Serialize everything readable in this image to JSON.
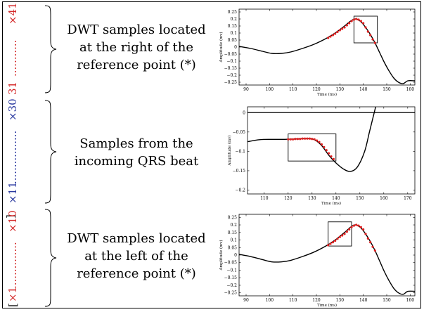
{
  "rows": [
    {
      "index_labels": [
        {
          "text": "31",
          "color": "#d42a2a",
          "bold": false
        },
        {
          "text": "×41",
          "color": "#d42a2a",
          "bold": false
        }
      ],
      "dots_color": "#d42a2a",
      "description": [
        "DWT samples located",
        "at the right of the",
        "reference point (*)"
      ]
    },
    {
      "index_labels": [
        {
          "text": "×11",
          "color": "#2b3aa0",
          "bold": false
        },
        {
          "text": "×30",
          "color": "#2b3aa0",
          "bold": false
        }
      ],
      "dots_color": "#2b3aa0",
      "description": [
        "Samples from the",
        "incoming QRS beat"
      ]
    },
    {
      "index_labels": [
        {
          "text": "×1",
          "color": "#d42a2a",
          "bold": false
        },
        {
          "text": "×10",
          "color": "#d42a2a",
          "bold": false
        }
      ],
      "dots_color": "#d42a2a",
      "description": [
        "DWT samples located",
        "at the left of the",
        "reference point (*)"
      ]
    }
  ],
  "bracket_text": "[",
  "bracket_close": "]",
  "chart_data": [
    {
      "type": "line",
      "xlabel": "Time (ms)",
      "ylabel": "Amplitude (mv)",
      "xlim": [
        87,
        162
      ],
      "ylim": [
        -0.27,
        0.27
      ],
      "xticks": [
        90,
        100,
        110,
        120,
        130,
        140,
        150,
        160
      ],
      "yticks": [
        0.25,
        0.2,
        0.15,
        0.1,
        0.05,
        0,
        -0.05,
        -0.1,
        -0.15,
        -0.2,
        -0.25
      ],
      "ytick_labels": [
        "0.25",
        "0.2",
        "0.15",
        "0.1",
        "0.05",
        "0",
        "−0.05",
        "−0.1",
        "−0.15",
        "−0.2",
        "−0.25"
      ],
      "curve": [
        [
          87,
          0.005
        ],
        [
          92,
          -0.01
        ],
        [
          97,
          -0.03
        ],
        [
          101,
          -0.045
        ],
        [
          105,
          -0.045
        ],
        [
          109,
          -0.035
        ],
        [
          114,
          -0.01
        ],
        [
          119,
          0.02
        ],
        [
          124,
          0.06
        ],
        [
          128,
          0.1
        ],
        [
          132,
          0.15
        ],
        [
          135,
          0.19
        ],
        [
          137,
          0.2
        ],
        [
          139,
          0.18
        ],
        [
          141,
          0.14
        ],
        [
          143,
          0.09
        ],
        [
          145,
          0.03
        ],
        [
          147,
          -0.04
        ],
        [
          149,
          -0.11
        ],
        [
          151,
          -0.17
        ],
        [
          153,
          -0.22
        ],
        [
          155,
          -0.25
        ],
        [
          157,
          -0.26
        ],
        [
          159,
          -0.24
        ],
        [
          162,
          -0.24
        ]
      ],
      "points_x": [
        125,
        126,
        127,
        128,
        129,
        130,
        131,
        132,
        133,
        134,
        135,
        136,
        137,
        138,
        139,
        140,
        141,
        142,
        143,
        144,
        145
      ],
      "points_y": [
        0.065,
        0.075,
        0.085,
        0.095,
        0.108,
        0.12,
        0.13,
        0.14,
        0.155,
        0.17,
        0.185,
        0.195,
        0.2,
        0.195,
        0.185,
        0.17,
        0.14,
        0.11,
        0.085,
        0.055,
        0.03
      ],
      "box": {
        "x": [
          136,
          146
        ],
        "y": [
          0.03,
          0.22
        ]
      },
      "series_color": "#000000",
      "point_color": "#e02020"
    },
    {
      "type": "line",
      "xlabel": "Time (ms)",
      "ylabel": "Amplitude (mv)",
      "xlim": [
        103,
        173
      ],
      "ylim": [
        -0.21,
        0.015
      ],
      "xticks": [
        110,
        120,
        130,
        140,
        150,
        160,
        170
      ],
      "yticks": [
        0,
        -0.05,
        -0.1,
        -0.15,
        -0.2
      ],
      "ytick_labels": [
        "0",
        "−0.05",
        "−0.1",
        "−0.15",
        "−0.2"
      ],
      "hline": 0,
      "curve": [
        [
          103,
          -0.075
        ],
        [
          108,
          -0.07
        ],
        [
          113,
          -0.069
        ],
        [
          118,
          -0.069
        ],
        [
          123,
          -0.068
        ],
        [
          128,
          -0.067
        ],
        [
          131,
          -0.07
        ],
        [
          134,
          -0.085
        ],
        [
          137,
          -0.11
        ],
        [
          140,
          -0.13
        ],
        [
          143,
          -0.145
        ],
        [
          146,
          -0.152
        ],
        [
          149,
          -0.14
        ],
        [
          152,
          -0.1
        ],
        [
          154,
          -0.05
        ],
        [
          156,
          0.0
        ],
        [
          158,
          0.05
        ]
      ],
      "points_x": [
        120,
        121,
        122,
        123,
        124,
        125,
        126,
        127,
        128,
        129,
        130,
        131,
        132,
        133,
        134,
        135,
        136,
        137,
        138,
        139
      ],
      "points_y": [
        -0.069,
        -0.069,
        -0.069,
        -0.068,
        -0.068,
        -0.068,
        -0.067,
        -0.067,
        -0.067,
        -0.067,
        -0.068,
        -0.069,
        -0.072,
        -0.076,
        -0.082,
        -0.089,
        -0.097,
        -0.105,
        -0.113,
        -0.12
      ],
      "box": {
        "x": [
          120,
          140
        ],
        "y": [
          -0.125,
          -0.055
        ]
      },
      "series_color": "#000000",
      "point_color": "#e02020"
    },
    {
      "type": "line",
      "xlabel": "Time (ms)",
      "ylabel": "Amplitude (mv)",
      "xlim": [
        87,
        162
      ],
      "ylim": [
        -0.27,
        0.27
      ],
      "xticks": [
        90,
        100,
        110,
        120,
        130,
        140,
        150,
        160
      ],
      "yticks": [
        0.25,
        0.2,
        0.15,
        0.1,
        0.05,
        0,
        -0.05,
        -0.1,
        -0.15,
        -0.2,
        -0.25
      ],
      "ytick_labels": [
        "0.25",
        "0.2",
        "0.15",
        "0.1",
        "0.05",
        "0",
        "−0.05",
        "−0.1",
        "−0.15",
        "−0.2",
        "−0.25"
      ],
      "curve": [
        [
          87,
          0.005
        ],
        [
          92,
          -0.01
        ],
        [
          97,
          -0.03
        ],
        [
          101,
          -0.045
        ],
        [
          105,
          -0.045
        ],
        [
          109,
          -0.035
        ],
        [
          114,
          -0.01
        ],
        [
          119,
          0.02
        ],
        [
          124,
          0.06
        ],
        [
          128,
          0.1
        ],
        [
          132,
          0.15
        ],
        [
          135,
          0.19
        ],
        [
          137,
          0.2
        ],
        [
          139,
          0.18
        ],
        [
          141,
          0.14
        ],
        [
          143,
          0.09
        ],
        [
          145,
          0.03
        ],
        [
          147,
          -0.04
        ],
        [
          149,
          -0.11
        ],
        [
          151,
          -0.17
        ],
        [
          153,
          -0.22
        ],
        [
          155,
          -0.25
        ],
        [
          157,
          -0.26
        ],
        [
          159,
          -0.24
        ],
        [
          162,
          -0.24
        ]
      ],
      "points_x": [
        125,
        126,
        127,
        128,
        129,
        130,
        131,
        132,
        133,
        134,
        135,
        136,
        137,
        138,
        139,
        140,
        141,
        142,
        143,
        144,
        145
      ],
      "points_y": [
        0.065,
        0.075,
        0.085,
        0.095,
        0.108,
        0.12,
        0.13,
        0.14,
        0.155,
        0.17,
        0.185,
        0.195,
        0.2,
        0.195,
        0.185,
        0.17,
        0.14,
        0.11,
        0.085,
        0.055,
        0.03
      ],
      "box": {
        "x": [
          125,
          135
        ],
        "y": [
          0.06,
          0.22
        ]
      },
      "series_color": "#000000",
      "point_color": "#e02020"
    }
  ]
}
